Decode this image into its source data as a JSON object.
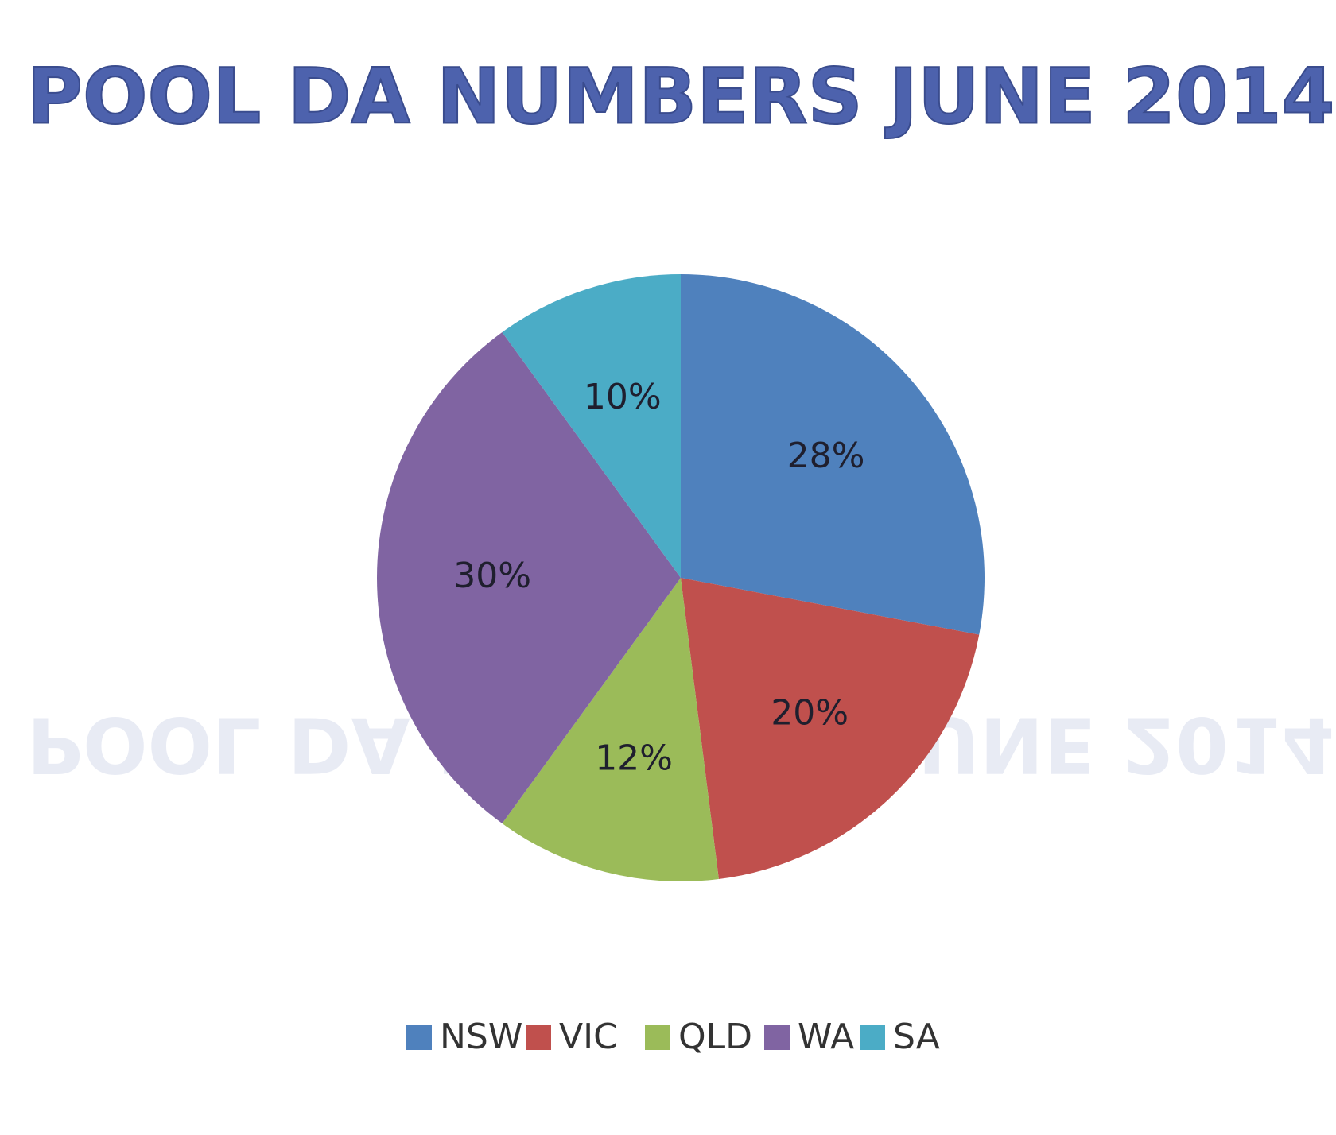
{
  "chart_data": {
    "type": "pie",
    "title": "POOL DA NUMBERS JUNE 2014",
    "categories": [
      "NSW",
      "VIC",
      "QLD",
      "WA",
      "SA"
    ],
    "values": [
      28,
      20,
      12,
      30,
      10
    ],
    "value_labels": [
      "28%",
      "20%",
      "12%",
      "30%",
      "10%"
    ],
    "colors": [
      "#4f81bd",
      "#c0504d",
      "#9bbb59",
      "#8064a2",
      "#4bacc6"
    ],
    "legend": "bottom"
  }
}
